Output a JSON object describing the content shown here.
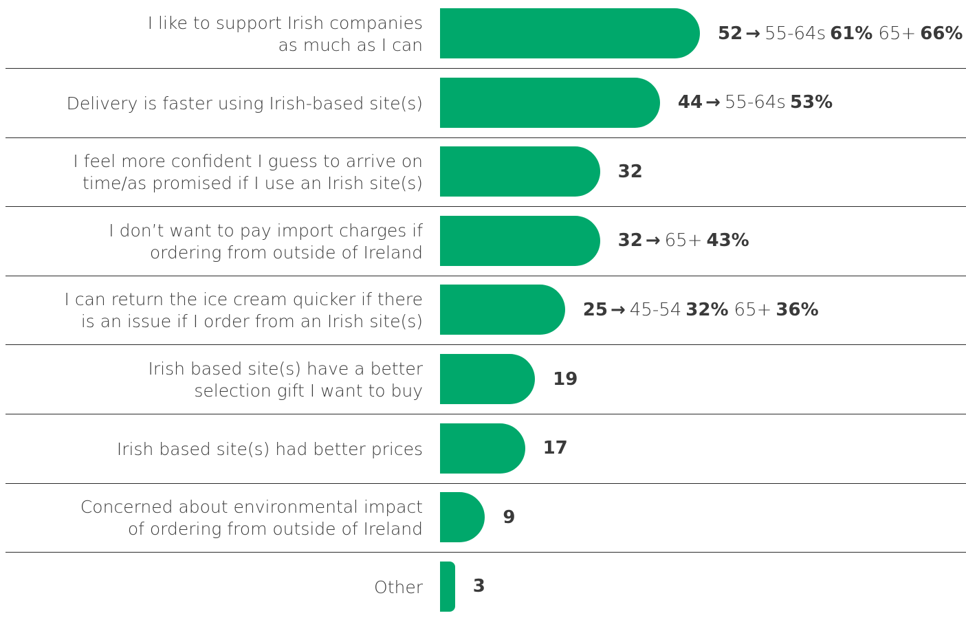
{
  "colors": {
    "bar": "#00a86b",
    "text": "#3a3a3a",
    "divider": "#2b2b2b"
  },
  "chart_data": {
    "type": "bar",
    "orientation": "horizontal",
    "xlim": [
      0,
      100
    ],
    "categories": [
      "I like to support Irish companies as much as I can",
      "Delivery is faster using Irish-based site(s)",
      "I feel more confident I guess to arrive on time/as promised if I use an Irish site(s)",
      "I don’t want to pay import charges if ordering from outside of Ireland",
      "I can return the ice cream quicker if there is an issue if I order from an Irish site(s)",
      "Irish based site(s) have a better selection gift I want to buy",
      "Irish based site(s) had better prices",
      "Concerned about environmental impact of ordering from outside of Ireland",
      "Other"
    ],
    "values": [
      52,
      44,
      32,
      32,
      25,
      19,
      17,
      9,
      3
    ],
    "rows": [
      {
        "label_lines": [
          "I like to support Irish companies",
          "as much as I can"
        ],
        "value": 52,
        "value_label": "52",
        "breakdown": [
          {
            "group": "55-64s",
            "pct": "61%"
          },
          {
            "group": "65+",
            "pct": "66%"
          }
        ]
      },
      {
        "label_lines": [
          "Delivery is faster using Irish-based site(s)"
        ],
        "value": 44,
        "value_label": "44",
        "breakdown": [
          {
            "group": "55-64s",
            "pct": "53%"
          }
        ]
      },
      {
        "label_lines": [
          "I feel more confident I guess to arrive on",
          "time/as promised if I use an Irish site(s)"
        ],
        "value": 32,
        "value_label": "32",
        "breakdown": []
      },
      {
        "label_lines": [
          "I don’t want to pay import charges if",
          "ordering from outside of Ireland"
        ],
        "value": 32,
        "value_label": "32",
        "breakdown": [
          {
            "group": "65+",
            "pct": "43%"
          }
        ]
      },
      {
        "label_lines": [
          "I can return the ice cream quicker if there",
          "is an issue if I order from an Irish site(s)"
        ],
        "value": 25,
        "value_label": "25",
        "breakdown": [
          {
            "group": "45-54",
            "pct": "32%"
          },
          {
            "group": "65+",
            "pct": "36%"
          }
        ]
      },
      {
        "label_lines": [
          "Irish based site(s) have a better",
          "selection gift I want to buy"
        ],
        "value": 19,
        "value_label": "19",
        "breakdown": []
      },
      {
        "label_lines": [
          "Irish based site(s) had better prices"
        ],
        "value": 17,
        "value_label": "17",
        "breakdown": []
      },
      {
        "label_lines": [
          "Concerned about environmental impact",
          "of ordering from outside of Ireland"
        ],
        "value": 9,
        "value_label": "9",
        "breakdown": []
      },
      {
        "label_lines": [
          "Other"
        ],
        "value": 3,
        "value_label": "3",
        "breakdown": []
      }
    ],
    "arrow_symbol": "→"
  }
}
